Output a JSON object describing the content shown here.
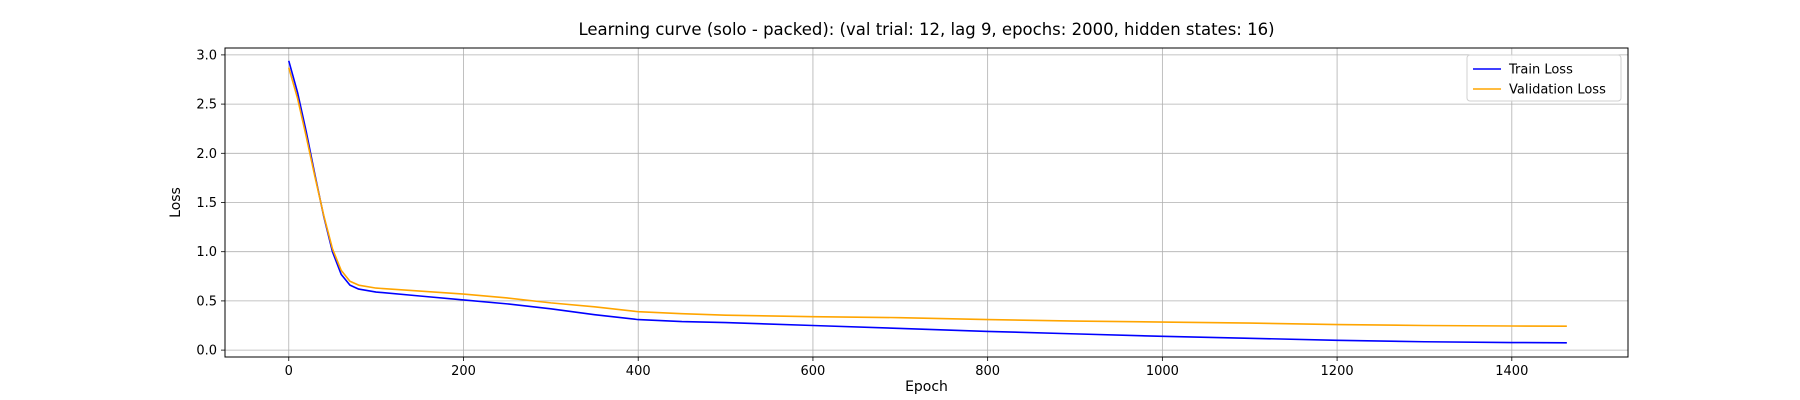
{
  "chart_data": {
    "type": "line",
    "title": "Learning curve (solo - packed): (val trial: 12, lag 9, epochs: 2000, hidden states: 16)",
    "xlabel": "Epoch",
    "ylabel": "Loss",
    "xlim": [
      -73,
      1533
    ],
    "ylim": [
      -0.07,
      3.07
    ],
    "xticks": [
      0,
      200,
      400,
      600,
      800,
      1000,
      1200,
      1400
    ],
    "yticks": [
      0.0,
      0.5,
      1.0,
      1.5,
      2.0,
      2.5,
      3.0
    ],
    "xtick_labels": [
      "0",
      "200",
      "400",
      "600",
      "800",
      "1000",
      "1200",
      "1400"
    ],
    "ytick_labels": [
      "0.0",
      "0.5",
      "1.0",
      "1.5",
      "2.0",
      "2.5",
      "3.0"
    ],
    "grid": true,
    "legend_position": "top-right",
    "series": [
      {
        "name": "Train Loss",
        "color": "#0000ff",
        "points": [
          [
            0,
            2.94
          ],
          [
            10,
            2.62
          ],
          [
            20,
            2.22
          ],
          [
            30,
            1.78
          ],
          [
            40,
            1.36
          ],
          [
            50,
            1.0
          ],
          [
            60,
            0.77
          ],
          [
            70,
            0.66
          ],
          [
            80,
            0.62
          ],
          [
            100,
            0.59
          ],
          [
            150,
            0.55
          ],
          [
            200,
            0.51
          ],
          [
            250,
            0.47
          ],
          [
            300,
            0.42
          ],
          [
            350,
            0.36
          ],
          [
            400,
            0.31
          ],
          [
            450,
            0.29
          ],
          [
            500,
            0.28
          ],
          [
            600,
            0.25
          ],
          [
            700,
            0.22
          ],
          [
            800,
            0.19
          ],
          [
            900,
            0.165
          ],
          [
            1000,
            0.14
          ],
          [
            1100,
            0.12
          ],
          [
            1200,
            0.1
          ],
          [
            1300,
            0.085
          ],
          [
            1400,
            0.077
          ],
          [
            1463,
            0.074
          ]
        ]
      },
      {
        "name": "Validation Loss",
        "color": "#ffa500",
        "points": [
          [
            0,
            2.87
          ],
          [
            10,
            2.56
          ],
          [
            20,
            2.17
          ],
          [
            30,
            1.76
          ],
          [
            40,
            1.37
          ],
          [
            50,
            1.03
          ],
          [
            60,
            0.81
          ],
          [
            70,
            0.7
          ],
          [
            80,
            0.66
          ],
          [
            100,
            0.63
          ],
          [
            150,
            0.6
          ],
          [
            200,
            0.57
          ],
          [
            250,
            0.53
          ],
          [
            300,
            0.48
          ],
          [
            350,
            0.44
          ],
          [
            400,
            0.39
          ],
          [
            450,
            0.37
          ],
          [
            500,
            0.355
          ],
          [
            600,
            0.34
          ],
          [
            700,
            0.33
          ],
          [
            800,
            0.31
          ],
          [
            900,
            0.295
          ],
          [
            1000,
            0.285
          ],
          [
            1100,
            0.275
          ],
          [
            1200,
            0.26
          ],
          [
            1300,
            0.25
          ],
          [
            1400,
            0.245
          ],
          [
            1463,
            0.243
          ]
        ]
      }
    ]
  }
}
